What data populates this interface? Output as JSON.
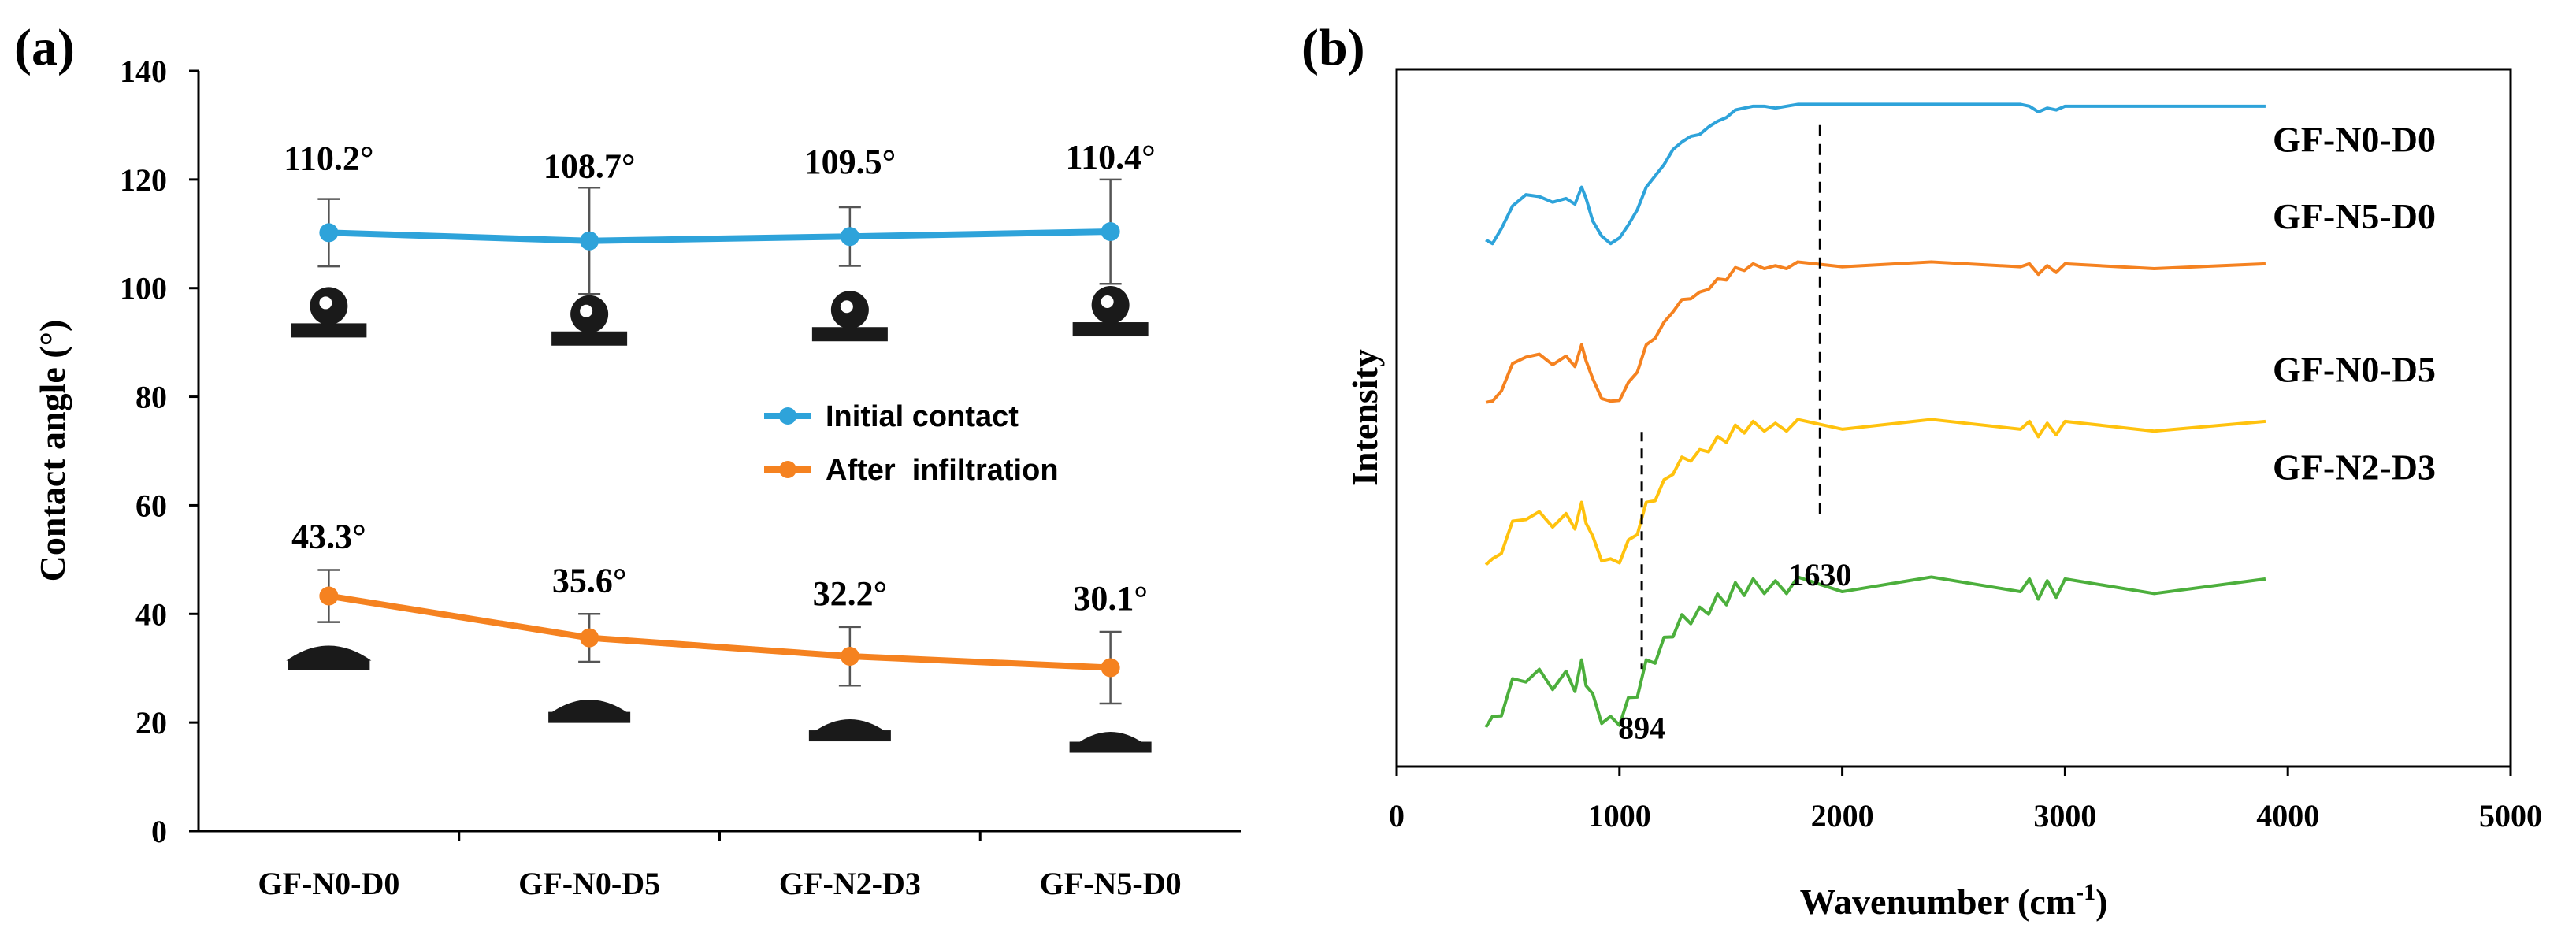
{
  "colors": {
    "initial": "#2EA3DA",
    "after": "#F58220",
    "gf_n0_d0": "#2EA3DA",
    "gf_n5_d0": "#F58220",
    "gf_n0_d5": "#FFC20E",
    "gf_n2_d3": "#4CAF3C",
    "axis": "#000000",
    "droplet": "#1a1a1a"
  },
  "chart_data": [
    {
      "panel": "(a)",
      "type": "line",
      "xlabel": "",
      "ylabel": "Contact angle (°)",
      "categories": [
        "GF-N0-D0",
        "GF-N0-D5",
        "GF-N2-D3",
        "GF-N5-D0"
      ],
      "ylim": [
        0,
        140
      ],
      "yticks": [
        "0",
        "20",
        "40",
        "60",
        "80",
        "100",
        "120",
        "140"
      ],
      "legend_position": "center-right",
      "series": [
        {
          "name": "Initial contact",
          "values": [
            110.2,
            108.7,
            109.5,
            110.4
          ],
          "errors": [
            6.2,
            9.8,
            5.4,
            9.6
          ],
          "labels": [
            "110.2°",
            "108.7°",
            "109.5°",
            "110.4°"
          ]
        },
        {
          "name": "After  infiltration",
          "values": [
            43.3,
            35.6,
            32.2,
            30.1
          ],
          "errors": [
            4.8,
            4.4,
            5.4,
            6.6
          ],
          "labels": [
            "43.3°",
            "35.6°",
            "32.2°",
            "30.1°"
          ]
        }
      ]
    },
    {
      "panel": "(b)",
      "type": "line",
      "xlabel": "Wavenumber (cm",
      "xlabel_sup": "-1",
      "xlabel_end": ")",
      "ylabel": "Intensity",
      "xlim": [
        0,
        5000
      ],
      "xticks": [
        "0",
        "1000",
        "2000",
        "3000",
        "4000",
        "5000"
      ],
      "annotations": [
        {
          "x": 1630,
          "text": "1630"
        },
        {
          "x": 894,
          "text": "894"
        }
      ],
      "series": [
        {
          "name": "GF-N0-D0",
          "offset": 0.75
        },
        {
          "name": "GF-N5-D0",
          "offset": 0.52
        },
        {
          "name": "GF-N0-D5",
          "offset": 0.29
        },
        {
          "name": "GF-N2-D3",
          "offset": 0.06
        }
      ],
      "profile_x": [
        400,
        430,
        470,
        520,
        580,
        640,
        700,
        760,
        800,
        830,
        850,
        880,
        920,
        960,
        1000,
        1040,
        1080,
        1120,
        1160,
        1200,
        1240,
        1280,
        1320,
        1360,
        1400,
        1440,
        1480,
        1520,
        1560,
        1600,
        1650,
        1700,
        1750,
        1800,
        2000,
        2400,
        2800,
        2840,
        2880,
        2920,
        2960,
        3000,
        3400,
        3900
      ],
      "profile_y": [
        0.02,
        0.0,
        0.08,
        0.2,
        0.26,
        0.25,
        0.22,
        0.24,
        0.21,
        0.3,
        0.24,
        0.12,
        0.04,
        0.0,
        0.03,
        0.1,
        0.18,
        0.3,
        0.36,
        0.42,
        0.5,
        0.54,
        0.57,
        0.58,
        0.62,
        0.65,
        0.67,
        0.71,
        0.72,
        0.73,
        0.73,
        0.72,
        0.73,
        0.74,
        0.74,
        0.74,
        0.74,
        0.73,
        0.7,
        0.72,
        0.71,
        0.73,
        0.73,
        0.73
      ]
    }
  ]
}
